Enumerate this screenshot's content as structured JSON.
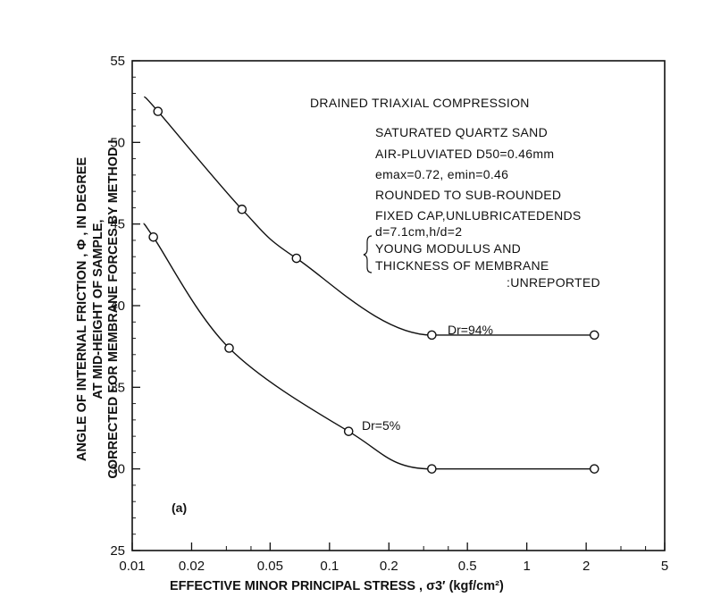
{
  "chart_data": {
    "type": "line",
    "title": "",
    "xlabel": "EFFECTIVE MINOR PRINCIPAL STRESS , σ3′ (kgf/cm²)",
    "ylabel_lines": [
      "ANGLE OF INTERNAL FRICTION ,   Φ , IN DEGREE",
      "AT MID-HEIGHT OF SAMPLE,",
      "CORRECTED FOR MEMBRANE FORCES BY METHOD I"
    ],
    "x_scale": "log",
    "xlim": [
      0.01,
      5
    ],
    "ylim": [
      25,
      55
    ],
    "x_ticks": [
      0.01,
      0.02,
      0.05,
      0.1,
      0.2,
      0.5,
      1,
      2,
      5
    ],
    "x_tick_labels": [
      "0.01",
      "0.02",
      "0.05",
      "0.1",
      "0.2",
      "0.5",
      "1",
      "2",
      "5"
    ],
    "y_ticks": [
      25,
      30,
      35,
      40,
      45,
      50,
      55
    ],
    "y_tick_labels": [
      "25",
      "30",
      "35",
      "40",
      "45",
      "50",
      "55"
    ],
    "grid": false,
    "panel_label": "(a)",
    "annotations": [
      "DRAINED TRIAXIAL COMPRESSION",
      "SATURATED QUARTZ SAND",
      "AIR-PLUVIATED  D50=0.46mm",
      "emax=0.72,   emin=0.46",
      "ROUNDED TO SUB-ROUNDED",
      "FIXED CAP,UNLUBRICATEDENDS",
      "d=7.1cm,h/d=2",
      "YOUNG MODULUS AND",
      "THICKNESS OF MEMBRANE",
      ":UNREPORTED"
    ],
    "series": [
      {
        "name": "Dr=94%",
        "x": [
          0.0135,
          0.036,
          0.068,
          0.33,
          2.2
        ],
        "y": [
          51.9,
          45.9,
          42.9,
          38.2,
          38.2
        ],
        "curve_start": [
          0.0115,
          52.8
        ]
      },
      {
        "name": "Dr=5%",
        "x": [
          0.0128,
          0.031,
          0.125,
          0.33,
          2.2
        ],
        "y": [
          44.2,
          37.4,
          32.3,
          30.0,
          30.0
        ],
        "curve_start": [
          0.0115,
          45.0
        ]
      }
    ]
  }
}
